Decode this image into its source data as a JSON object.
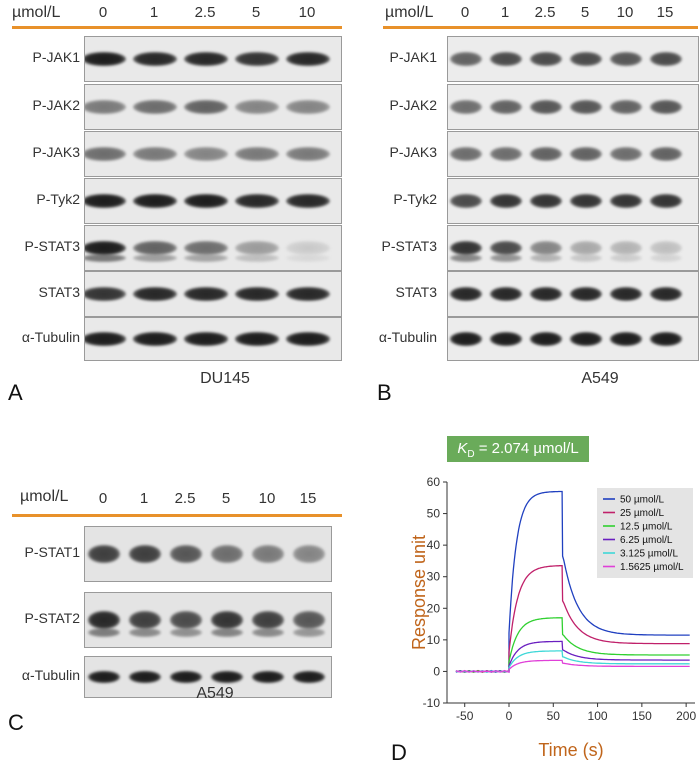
{
  "panelA": {
    "letter": "A",
    "unit_label": "µmol/L",
    "concentrations": [
      "0",
      "1",
      "2.5",
      "5",
      "10"
    ],
    "cell_line": "DU145",
    "rows": [
      {
        "label": "P-JAK1",
        "intensities": [
          0.95,
          0.9,
          0.9,
          0.85,
          0.9
        ]
      },
      {
        "label": "P-JAK2",
        "intensities": [
          0.55,
          0.6,
          0.65,
          0.5,
          0.5
        ]
      },
      {
        "label": "P-JAK3",
        "intensities": [
          0.6,
          0.55,
          0.5,
          0.55,
          0.55
        ]
      },
      {
        "label": "P-Tyk2",
        "intensities": [
          0.95,
          0.95,
          0.95,
          0.9,
          0.9
        ]
      },
      {
        "label": "P-STAT3",
        "intensities": [
          0.95,
          0.65,
          0.6,
          0.4,
          0.2
        ]
      },
      {
        "label": "STAT3",
        "intensities": [
          0.85,
          0.9,
          0.9,
          0.9,
          0.9
        ]
      },
      {
        "label": "α-Tubulin",
        "intensities": [
          0.95,
          0.95,
          0.95,
          0.95,
          0.95
        ]
      }
    ]
  },
  "panelB": {
    "letter": "B",
    "unit_label": "µmol/L",
    "concentrations": [
      "0",
      "1",
      "2.5",
      "5",
      "10",
      "15"
    ],
    "cell_line": "A549",
    "rows": [
      {
        "label": "P-JAK1",
        "intensities": [
          0.65,
          0.75,
          0.75,
          0.75,
          0.7,
          0.75
        ]
      },
      {
        "label": "P-JAK2",
        "intensities": [
          0.6,
          0.65,
          0.7,
          0.7,
          0.65,
          0.7
        ]
      },
      {
        "label": "P-JAK3",
        "intensities": [
          0.6,
          0.6,
          0.65,
          0.65,
          0.6,
          0.65
        ]
      },
      {
        "label": "P-Tyk2",
        "intensities": [
          0.75,
          0.85,
          0.85,
          0.85,
          0.85,
          0.85
        ]
      },
      {
        "label": "P-STAT3",
        "intensities": [
          0.85,
          0.75,
          0.5,
          0.35,
          0.3,
          0.25
        ]
      },
      {
        "label": "STAT3",
        "intensities": [
          0.9,
          0.9,
          0.9,
          0.9,
          0.9,
          0.9
        ]
      },
      {
        "label": "α-Tubulin",
        "intensities": [
          0.95,
          0.95,
          0.95,
          0.95,
          0.95,
          0.95
        ]
      }
    ]
  },
  "panelC": {
    "letter": "C",
    "unit_label": "µmol/L",
    "concentrations": [
      "0",
      "1",
      "2.5",
      "5",
      "10",
      "15"
    ],
    "cell_line": "A549",
    "rows": [
      {
        "label": "P-STAT1",
        "intensities": [
          0.8,
          0.8,
          0.7,
          0.6,
          0.55,
          0.5
        ]
      },
      {
        "label": "P-STAT2",
        "intensities": [
          0.9,
          0.8,
          0.75,
          0.85,
          0.8,
          0.7
        ]
      },
      {
        "label": "α-Tubulin",
        "intensities": [
          0.95,
          0.95,
          0.95,
          0.95,
          0.95,
          0.95
        ]
      }
    ]
  },
  "panelD": {
    "letter": "D",
    "kd_label_K": "K",
    "kd_label_sub": "D",
    "kd_label_rest": " = 2.074 µmol/L",
    "kd_box_color": "#6aab5a",
    "chart_data": {
      "type": "line",
      "xlabel": "Time (s)",
      "ylabel": "Response unit",
      "label_color": "#c0651b",
      "xlim": [
        -70,
        210
      ],
      "ylim": [
        -10,
        60
      ],
      "xticks": [
        -50,
        0,
        50,
        100,
        150,
        200
      ],
      "yticks": [
        -10,
        0,
        10,
        20,
        30,
        40,
        50,
        60
      ],
      "legend_position": "top-right",
      "series": [
        {
          "name": "50 µmol/L",
          "color": "#2040c0",
          "plateau": 57,
          "assoc_k": 0.12,
          "final": 11.5
        },
        {
          "name": "25 µmol/L",
          "color": "#c0206a",
          "plateau": 33.5,
          "assoc_k": 0.1,
          "final": 8.8
        },
        {
          "name": "12.5 µmol/L",
          "color": "#30d030",
          "plateau": 17,
          "assoc_k": 0.1,
          "final": 5.2
        },
        {
          "name": "6.25 µmol/L",
          "color": "#6a1fc0",
          "plateau": 9.5,
          "assoc_k": 0.1,
          "final": 3.6
        },
        {
          "name": "3.125 µmol/L",
          "color": "#40d8d8",
          "plateau": 6.5,
          "assoc_k": 0.1,
          "final": 2.4
        },
        {
          "name": "1.5625 µmol/L",
          "color": "#e040d8",
          "plateau": 3.5,
          "assoc_k": 0.1,
          "final": 1.6
        }
      ]
    }
  }
}
